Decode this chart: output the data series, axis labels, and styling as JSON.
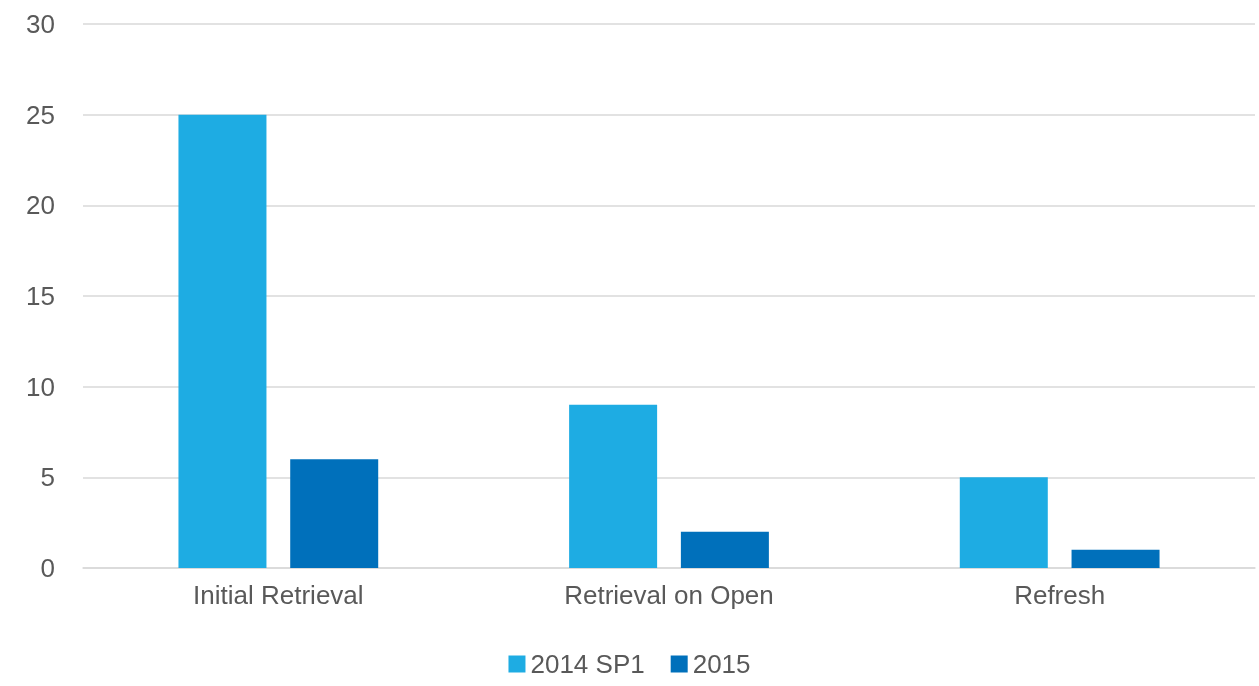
{
  "chart_data": {
    "type": "bar",
    "categories": [
      "Initial Retrieval",
      "Retrieval on Open",
      "Refresh"
    ],
    "series": [
      {
        "name": "2014 SP1",
        "color": "#1eace3",
        "values": [
          25,
          9,
          5
        ]
      },
      {
        "name": "2015",
        "color": "#0070bb",
        "values": [
          6,
          2,
          1
        ]
      }
    ],
    "ylim": [
      0,
      30
    ],
    "yticks": [
      0,
      5,
      10,
      15,
      20,
      25,
      30
    ],
    "grid": "y",
    "legend": "bottom"
  }
}
